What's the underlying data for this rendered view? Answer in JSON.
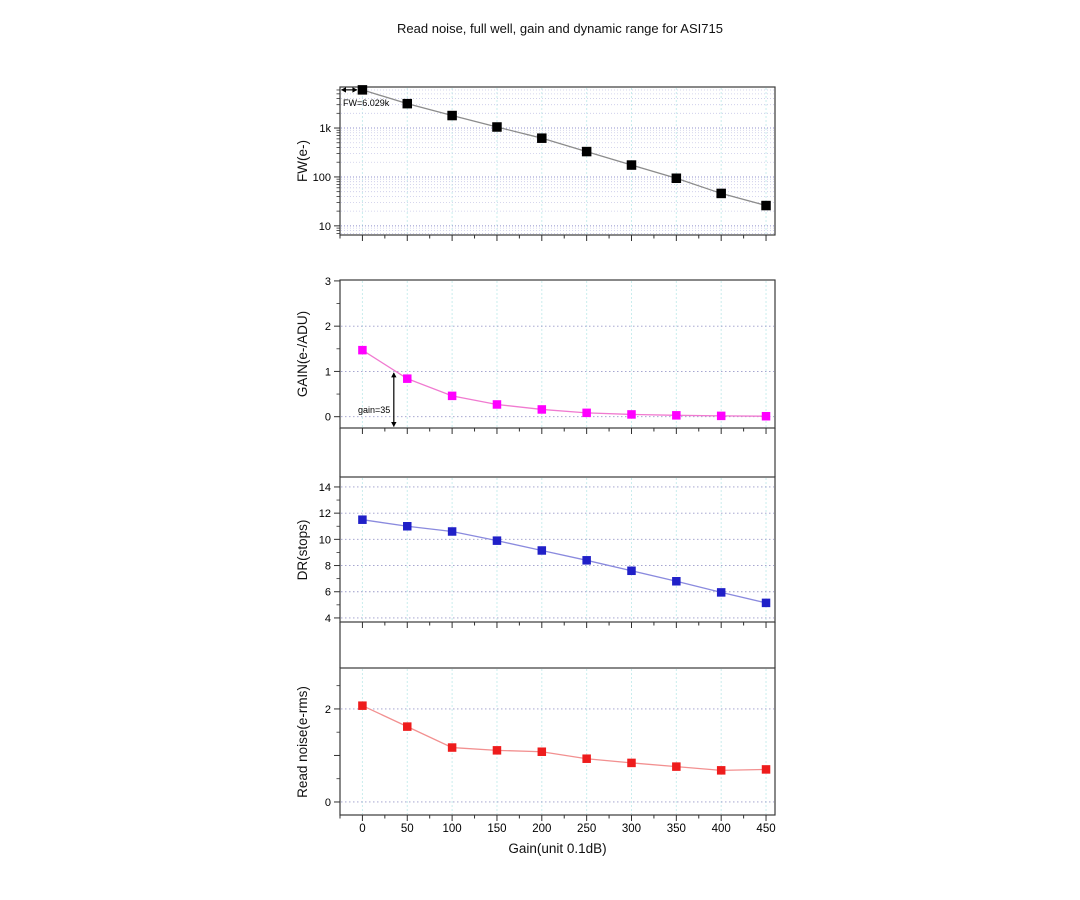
{
  "title": "Read noise, full well, gain and dynamic range for ASI715",
  "x_axis": {
    "label": "Gain(unit 0.1dB)",
    "major_ticks": [
      0,
      50,
      100,
      150,
      200,
      250,
      300,
      350,
      400,
      450
    ],
    "minor_step": 25,
    "range": [
      -25,
      460
    ]
  },
  "colors": {
    "frame": "#3a3a3a",
    "tick": "#303030",
    "grid_vertical": "#c9eded",
    "grid_h_major": "#9191cc",
    "grid_h_minor": "#c9c9e8",
    "grid_h_linear": "#9a9ac9",
    "annotation": "#000000"
  },
  "chart_data": [
    {
      "id": "full-well",
      "type": "line",
      "ylabel": "FW(e-)",
      "yscale": "log",
      "ylim": [
        6.5,
        6900
      ],
      "yticks": [
        [
          10,
          "10"
        ],
        [
          100,
          "100"
        ],
        [
          1000,
          "1k"
        ]
      ],
      "x": [
        0,
        50,
        100,
        150,
        200,
        250,
        300,
        350,
        400,
        450
      ],
      "values": [
        6029,
        3150,
        1800,
        1050,
        620,
        330,
        175,
        94,
        46,
        26
      ],
      "marker_color": "#000000",
      "line_color": "#8c8c8c",
      "marker_size": 9.5,
      "annotation": {
        "text": "FW=6.029k"
      }
    },
    {
      "id": "gain",
      "type": "line",
      "ylabel": "GAIN(e-/ADU)",
      "yscale": "linear",
      "ylim": [
        -0.25,
        3.02
      ],
      "yticks": [
        [
          0,
          "0"
        ],
        [
          1,
          "1"
        ],
        [
          2,
          "2"
        ],
        [
          3,
          "3"
        ]
      ],
      "yticks_minor": [
        0.5,
        1.5,
        2.5
      ],
      "ygrid": [
        0,
        1,
        2
      ],
      "x": [
        0,
        50,
        100,
        150,
        200,
        250,
        300,
        350,
        400,
        450
      ],
      "values": [
        1.47,
        0.84,
        0.46,
        0.27,
        0.16,
        0.085,
        0.05,
        0.03,
        0.018,
        0.01
      ],
      "marker_color": "#ff00ff",
      "line_color": "#f07ad0",
      "marker_size": 8.5,
      "annotation": {
        "text": "gain=35",
        "at_x": 35
      }
    },
    {
      "id": "dynamic-range",
      "type": "line",
      "ylabel": "DR(stops)",
      "yscale": "linear",
      "ylim": [
        3.69,
        14.76
      ],
      "yticks": [
        [
          4,
          "4"
        ],
        [
          6,
          "6"
        ],
        [
          8,
          "8"
        ],
        [
          10,
          "10"
        ],
        [
          12,
          "12"
        ],
        [
          14,
          "14"
        ]
      ],
      "yticks_minor": [
        5,
        7,
        9,
        11,
        13
      ],
      "ygrid": [
        4,
        6,
        8,
        10,
        12,
        14
      ],
      "x": [
        0,
        50,
        100,
        150,
        200,
        250,
        300,
        350,
        400,
        450
      ],
      "values": [
        11.5,
        11.0,
        10.6,
        9.9,
        9.15,
        8.4,
        7.6,
        6.8,
        5.95,
        5.15
      ],
      "marker_color": "#2020c8",
      "line_color": "#8a8ade",
      "marker_size": 8.5
    },
    {
      "id": "read-noise",
      "type": "line",
      "ylabel": "Read noise(e-rms)",
      "yscale": "linear",
      "ylim": [
        -0.28,
        2.88
      ],
      "yticks": [
        [
          0,
          "0"
        ],
        [
          1,
          ""
        ],
        [
          2,
          "2"
        ]
      ],
      "yticks_minor": [
        0.5,
        1.5,
        2.5
      ],
      "ygrid": [
        0,
        2
      ],
      "x": [
        0,
        50,
        100,
        150,
        200,
        250,
        300,
        350,
        400,
        450
      ],
      "values": [
        2.07,
        1.62,
        1.17,
        1.11,
        1.08,
        0.93,
        0.84,
        0.76,
        0.68,
        0.7
      ],
      "marker_color": "#ee1c1c",
      "line_color": "#f29090",
      "marker_size": 8.5
    }
  ]
}
